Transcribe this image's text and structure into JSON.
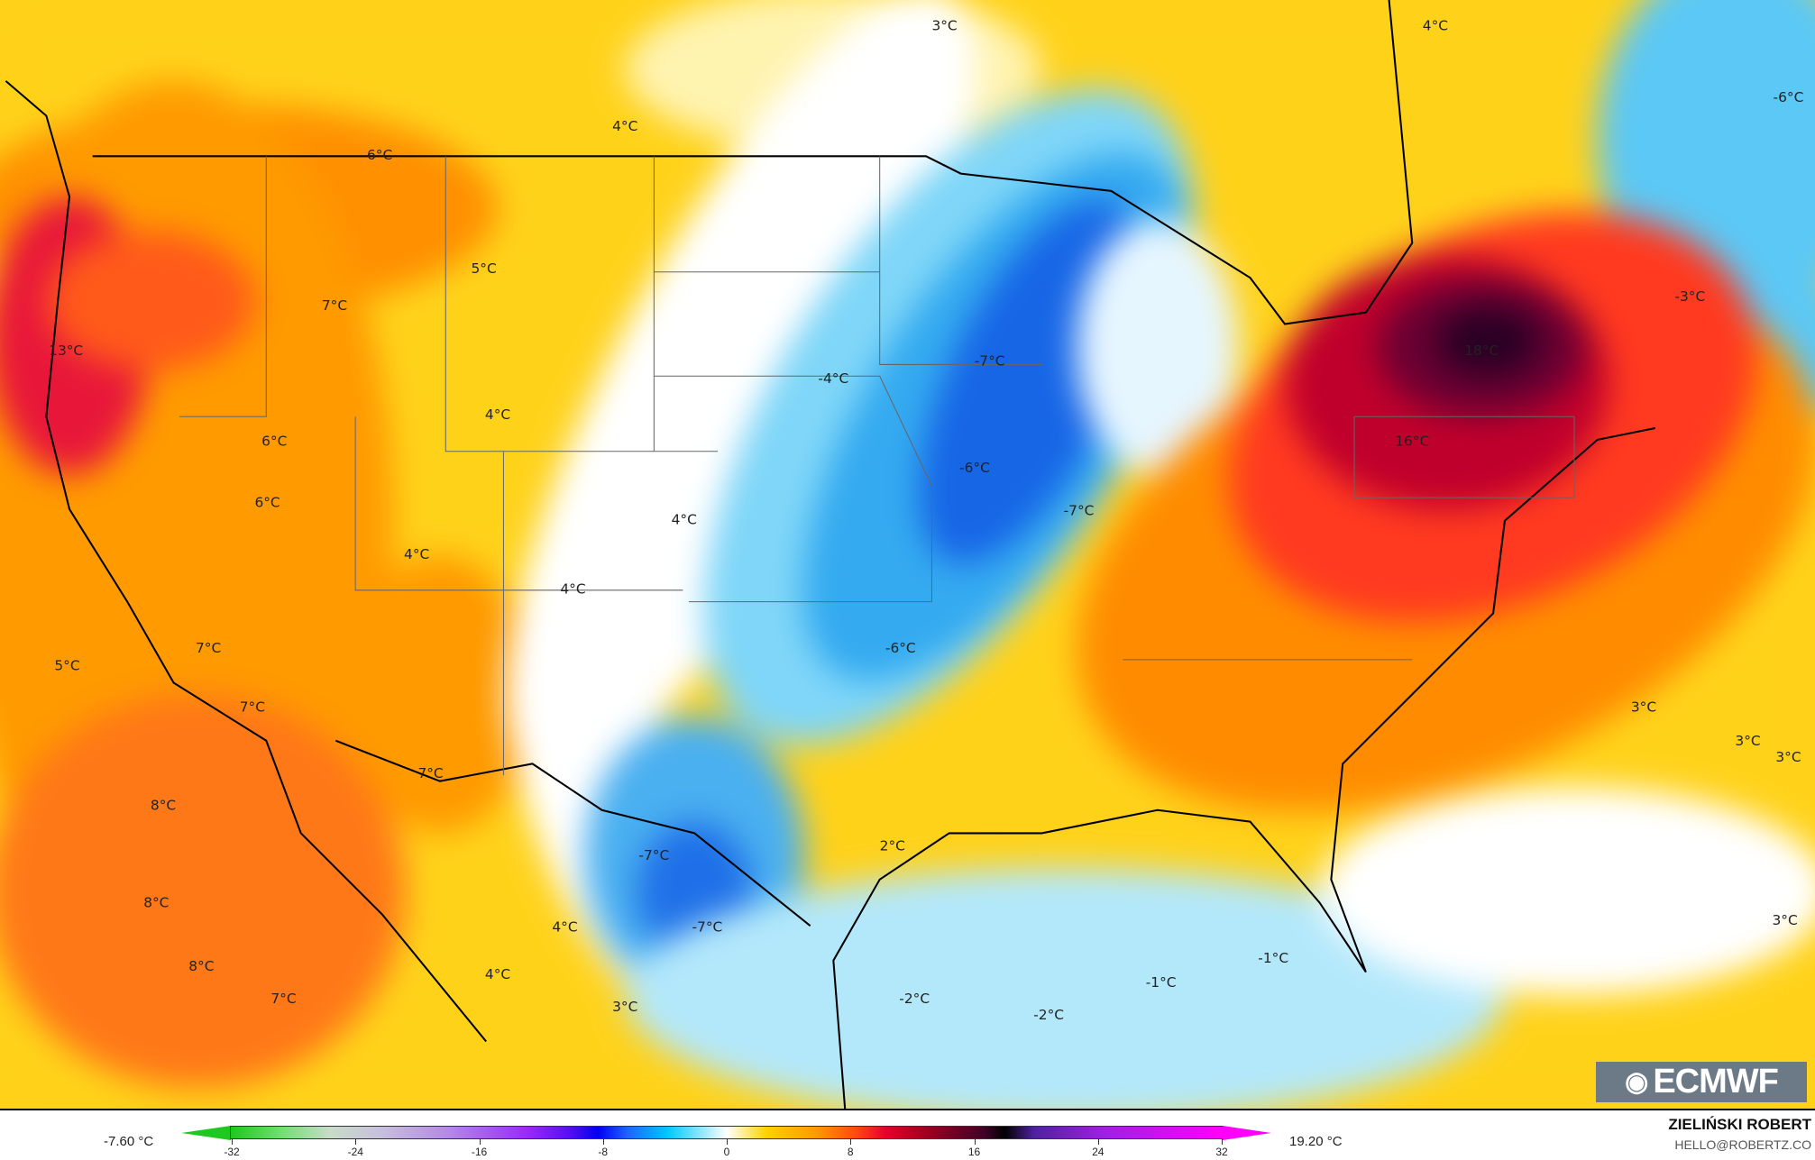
{
  "map": {
    "labels": [
      "3°C",
      "4°C",
      "-6°C",
      "4°C",
      "6°C",
      "5°C",
      "7°C",
      "13°C",
      "-4°C",
      "-7°C",
      "18°C",
      "-3°C",
      "4°C",
      "6°C",
      "16°C",
      "-6°C",
      "6°C",
      "-7°C",
      "4°C",
      "4°C",
      "4°C",
      "-6°C",
      "7°C",
      "5°C",
      "7°C",
      "3°C",
      "3°C",
      "3°C",
      "7°C",
      "8°C",
      "2°C",
      "-7°C",
      "8°C",
      "4°C",
      "-7°C",
      "3°C",
      "-1°C",
      "8°C",
      "4°C",
      "-1°C",
      "7°C",
      "3°C",
      "-2°C",
      "-2°C"
    ]
  },
  "legend": {
    "min_label": "-7.60 °C",
    "max_label": "19.20 °C",
    "ticks": [
      "-32",
      "-24",
      "-16",
      "-8",
      "0",
      "8",
      "16",
      "24",
      "32"
    ],
    "range": [
      -32,
      32
    ],
    "colors": {
      "cold_end": "#1ec81e",
      "zero": "#ffffff",
      "warm_end": "#ff00ff"
    }
  },
  "logo": {
    "text": "ECMWF"
  },
  "attribution": {
    "author": "ZIELIŃSKI ROBERT",
    "email": "HELLO@ROBERTZ.CO"
  }
}
